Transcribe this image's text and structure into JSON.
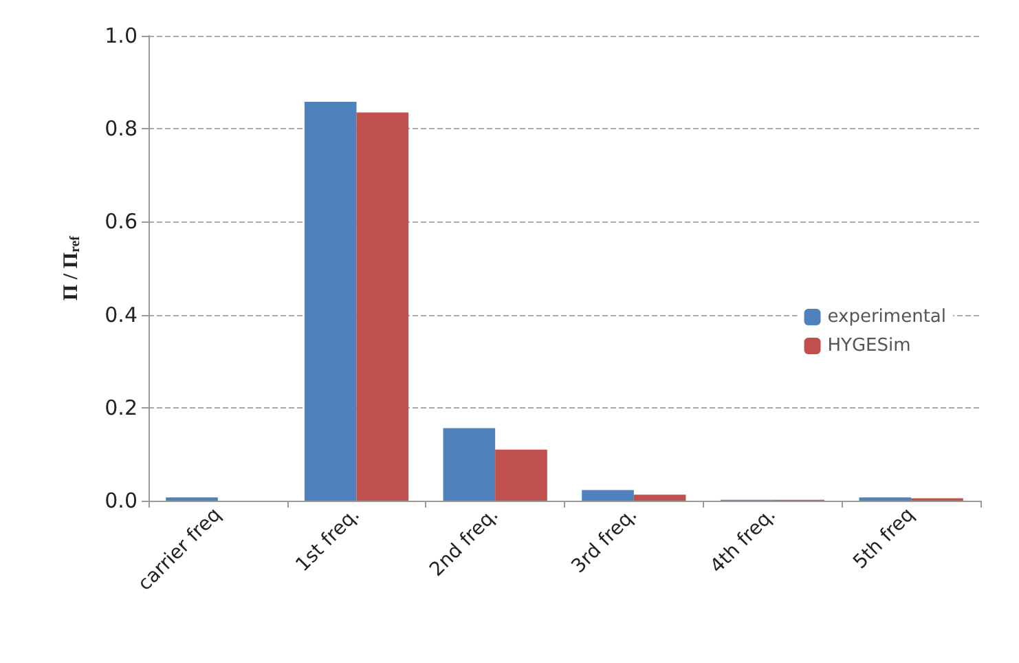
{
  "chart_data": {
    "type": "bar",
    "ylabel": "Π / Π$_{ref}$",
    "categories": [
      "carrier freq",
      "1st freq.",
      "2nd freq.",
      "3rd freq.",
      "4th freq.",
      "5th freq"
    ],
    "series": [
      {
        "name": "experimental",
        "color": "#4f81bd",
        "values": [
          0.007,
          0.858,
          0.156,
          0.023,
          0.002,
          0.007
        ]
      },
      {
        "name": "HYGESim",
        "color": "#c0504d",
        "values": [
          0,
          0.835,
          0.11,
          0.013,
          0.002,
          0.005
        ]
      }
    ],
    "ylim": [
      0,
      1
    ],
    "yticks": [
      {
        "value": 0,
        "label": "0.0"
      },
      0.2,
      0.4,
      0.6,
      0.8,
      {
        "value": 1,
        "label": "1.0"
      }
    ],
    "grid": "y",
    "legend": "right"
  }
}
